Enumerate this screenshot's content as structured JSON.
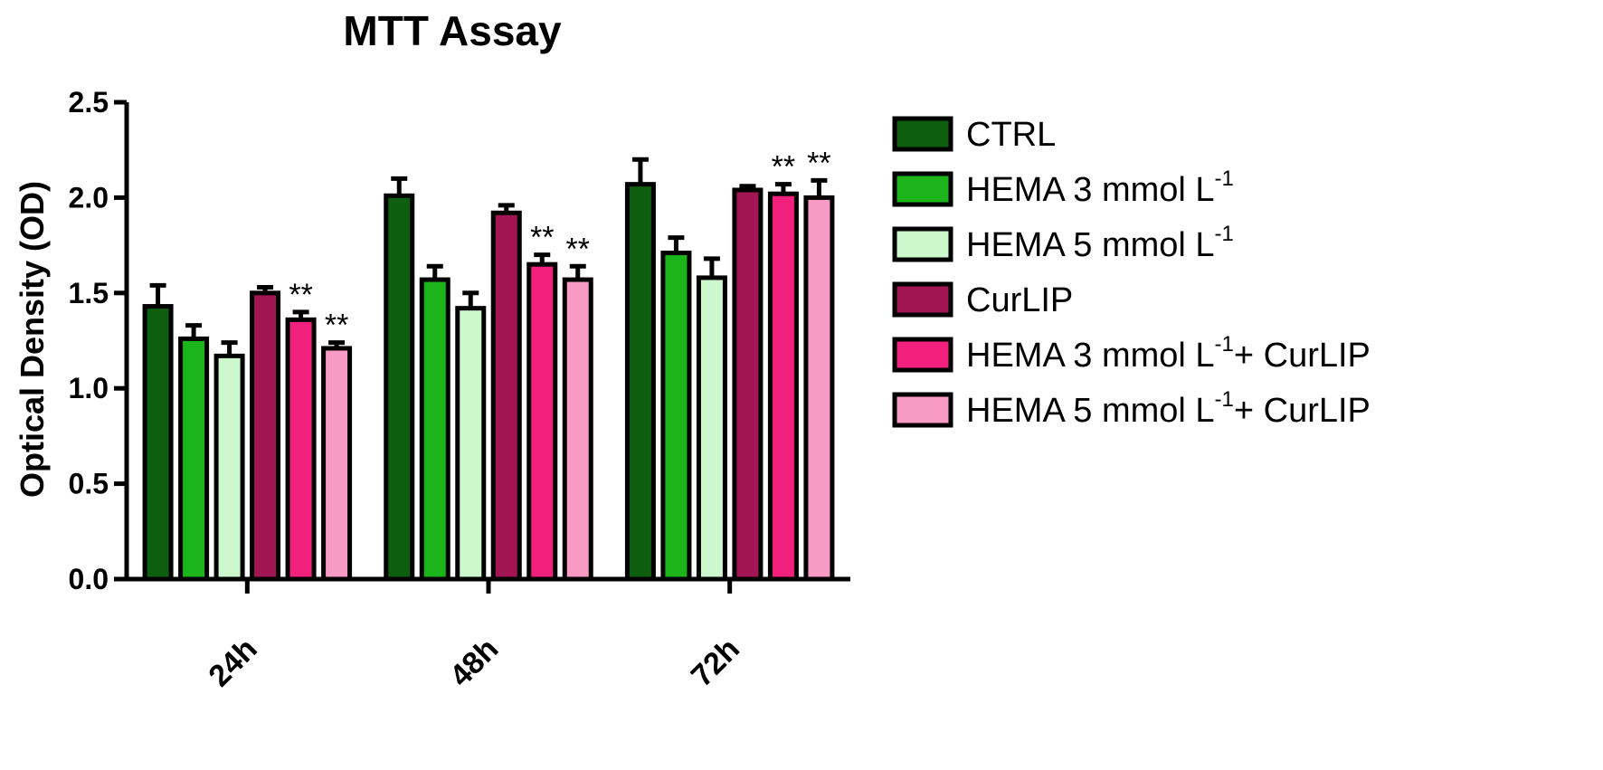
{
  "chart_data": {
    "type": "bar",
    "title": "MTT Assay",
    "xlabel": "",
    "ylabel": "Optical Density (OD)",
    "ylim": [
      0,
      2.5
    ],
    "yticks": [
      "0.0",
      "0.5",
      "1.0",
      "1.5",
      "2.0",
      "2.5"
    ],
    "categories": [
      "24h",
      "48h",
      "72h"
    ],
    "grid": false,
    "legend_position": "right",
    "series": [
      {
        "name": "CTRL",
        "legend_parts": [
          "CTRL"
        ],
        "color": "#0d5e0f",
        "values": [
          1.43,
          2.01,
          2.07
        ],
        "errors": [
          0.11,
          0.09,
          0.13
        ],
        "sig": [
          "",
          "",
          ""
        ]
      },
      {
        "name": "HEMA 3 mmol L-1",
        "legend_parts": [
          "HEMA 3 mmol L",
          "-1",
          ""
        ],
        "color": "#1bb51b",
        "values": [
          1.26,
          1.57,
          1.71
        ],
        "errors": [
          0.07,
          0.07,
          0.08
        ],
        "sig": [
          "",
          "",
          ""
        ]
      },
      {
        "name": "HEMA 5 mmol L-1",
        "legend_parts": [
          "HEMA 5 mmol L",
          "-1",
          ""
        ],
        "color": "#cdf7cd",
        "values": [
          1.17,
          1.42,
          1.58
        ],
        "errors": [
          0.07,
          0.08,
          0.1
        ],
        "sig": [
          "",
          "",
          ""
        ]
      },
      {
        "name": "CurLIP",
        "legend_parts": [
          "CurLIP"
        ],
        "color": "#a01552",
        "values": [
          1.5,
          1.92,
          2.04
        ],
        "errors": [
          0.03,
          0.04,
          0.02
        ],
        "sig": [
          "",
          "",
          ""
        ]
      },
      {
        "name": "HEMA 3 mmol L-1+ CurLIP",
        "legend_parts": [
          "HEMA 3 mmol L",
          "-1",
          "+ CurLIP"
        ],
        "color": "#f0207c",
        "values": [
          1.36,
          1.65,
          2.02
        ],
        "errors": [
          0.04,
          0.05,
          0.05
        ],
        "sig": [
          "**",
          "**",
          "**"
        ]
      },
      {
        "name": "HEMA 5 mmol L-1+ CurLIP",
        "legend_parts": [
          "HEMA 5 mmol L",
          "-1",
          "+ CurLIP"
        ],
        "color": "#f79ac4",
        "values": [
          1.21,
          1.57,
          2.0
        ],
        "errors": [
          0.03,
          0.07,
          0.09
        ],
        "sig": [
          "**",
          "**",
          "**"
        ]
      }
    ]
  }
}
